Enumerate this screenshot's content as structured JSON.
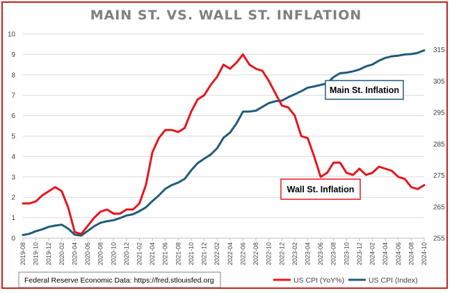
{
  "chart_data": {
    "type": "line",
    "title": "MAIN ST. VS. WALL ST. INFLATION",
    "x": [
      "2019-08",
      "2019-09",
      "2019-10",
      "2019-11",
      "2019-12",
      "2020-01",
      "2020-02",
      "2020-03",
      "2020-04",
      "2020-05",
      "2020-06",
      "2020-07",
      "2020-08",
      "2020-09",
      "2020-10",
      "2020-11",
      "2020-12",
      "2021-01",
      "2021-02",
      "2021-03",
      "2021-04",
      "2021-05",
      "2021-06",
      "2021-07",
      "2021-08",
      "2021-09",
      "2021-10",
      "2021-11",
      "2021-12",
      "2022-01",
      "2022-02",
      "2022-03",
      "2022-04",
      "2022-05",
      "2022-06",
      "2022-07",
      "2022-08",
      "2022-09",
      "2022-10",
      "2022-11",
      "2022-12",
      "2023-01",
      "2023-02",
      "2023-03",
      "2023-04",
      "2023-05",
      "2023-06",
      "2023-07",
      "2023-08",
      "2023-09",
      "2023-10",
      "2023-11",
      "2023-12",
      "2024-01",
      "2024-02",
      "2024-03",
      "2024-04",
      "2024-05",
      "2024-06",
      "2024-07",
      "2024-08",
      "2024-09",
      "2024-10"
    ],
    "x_tick_labels": [
      "2019-08",
      "2019-10",
      "2019-12",
      "2020-02",
      "2020-04",
      "2020-06",
      "2020-08",
      "2020-10",
      "2020-12",
      "2021-02",
      "2021-04",
      "2021-06",
      "2021-08",
      "2021-10",
      "2021-12",
      "2022-02",
      "2022-04",
      "2022-06",
      "2022-08",
      "2022-10",
      "2022-12",
      "2023-02",
      "2023-04",
      "2023-06",
      "2023-08",
      "2023-10",
      "2023-12",
      "2024-02",
      "2024-04",
      "2024-06",
      "2024-08",
      "2024-10"
    ],
    "y_left": {
      "ylim": [
        0,
        10
      ],
      "ticks": [
        "0",
        "1",
        "2",
        "3",
        "4",
        "5",
        "6",
        "7",
        "8",
        "9",
        "10"
      ]
    },
    "y_right": {
      "ylim": [
        255,
        320
      ],
      "ticks": [
        "255",
        "265",
        "275",
        "285",
        "295",
        "305",
        "315"
      ]
    },
    "series": [
      {
        "name": "US CPI (YoY%)",
        "axis": "left",
        "color": "#e8141b",
        "values": [
          1.7,
          1.7,
          1.8,
          2.1,
          2.3,
          2.5,
          2.3,
          1.5,
          0.3,
          0.2,
          0.6,
          1.0,
          1.3,
          1.4,
          1.2,
          1.2,
          1.4,
          1.4,
          1.7,
          2.6,
          4.2,
          4.9,
          5.3,
          5.3,
          5.2,
          5.4,
          6.2,
          6.8,
          7.0,
          7.5,
          7.9,
          8.5,
          8.3,
          8.6,
          9.0,
          8.5,
          8.3,
          8.2,
          7.7,
          7.1,
          6.5,
          6.4,
          6.0,
          5.0,
          4.9,
          4.0,
          3.0,
          3.2,
          3.7,
          3.7,
          3.2,
          3.1,
          3.4,
          3.1,
          3.2,
          3.5,
          3.4,
          3.3,
          3.0,
          2.9,
          2.5,
          2.4,
          2.6
        ]
      },
      {
        "name": "US CPI (Index)",
        "axis": "right",
        "color": "#1f5b7a",
        "values": [
          256.0,
          256.4,
          257.2,
          257.8,
          258.6,
          259.0,
          259.3,
          258.0,
          256.1,
          255.8,
          257.3,
          258.8,
          259.9,
          260.4,
          260.7,
          261.4,
          262.2,
          262.6,
          263.6,
          264.8,
          266.8,
          268.6,
          270.7,
          271.9,
          272.7,
          273.9,
          276.6,
          278.9,
          280.3,
          281.6,
          283.6,
          287.0,
          288.6,
          291.5,
          295.3,
          295.3,
          295.6,
          296.8,
          298.0,
          298.6,
          298.8,
          299.9,
          300.8,
          301.8,
          302.9,
          303.3,
          303.8,
          304.3,
          306.3,
          307.5,
          307.7,
          308.1,
          308.7,
          309.7,
          310.3,
          311.5,
          312.4,
          312.9,
          313.1,
          313.5,
          313.6,
          314.0,
          314.8
        ]
      }
    ],
    "legend_position": "bottom-right",
    "annotations": [
      {
        "text": "Main St. Inflation",
        "target": "US CPI (Index)"
      },
      {
        "text": "Wall St. Inflation",
        "target": "US CPI (YoY%)"
      }
    ],
    "source": "Federal Reserve Economic Data: https://fred.stlouisfed.org"
  },
  "colors": {
    "frame": "#c0221a",
    "grid": "#d9d9d9",
    "main_box_border": "#1f5b7a",
    "wall_box_border": "#e8141b"
  }
}
